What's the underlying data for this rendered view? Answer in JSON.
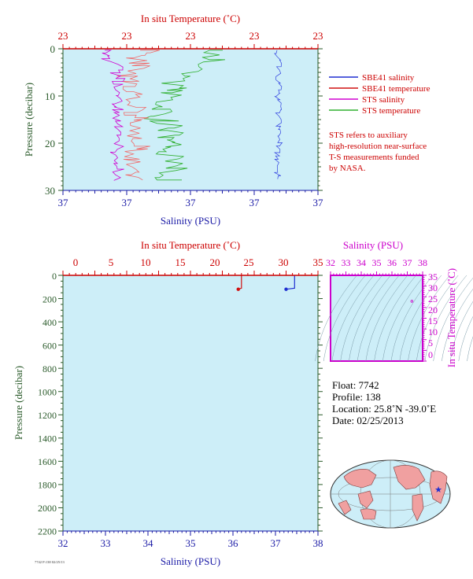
{
  "top_panel": {
    "top_axis_title": "In situ Temperature (˚C)",
    "top_ticks": [
      "23",
      "23",
      "23",
      "23",
      "23"
    ],
    "bottom_axis_title": "Salinity (PSU)",
    "bottom_ticks": [
      "37",
      "37",
      "37",
      "37",
      "37"
    ],
    "left_axis_title": "Pressure (decibar)",
    "left_ticks": [
      "0",
      "10",
      "20",
      "30"
    ]
  },
  "legend": {
    "items": [
      {
        "label": "SBE41 salinity",
        "color": "#1f2fd0"
      },
      {
        "label": "SBE41 temperature",
        "color": "#d01010"
      },
      {
        "label": "STS salinity",
        "color": "#d000d0"
      },
      {
        "label": "STS temperature",
        "color": "#30b030"
      }
    ],
    "note": [
      "STS refers to auxiliary",
      "high-resolution near-surface",
      "T-S measurements funded",
      "by NASA."
    ]
  },
  "bottom_panel": {
    "top_axis_title": "In situ Temperature (˚C)",
    "top_ticks": [
      "0",
      "5",
      "10",
      "15",
      "20",
      "25",
      "30",
      "35"
    ],
    "bottom_axis_title": "Salinity (PSU)",
    "bottom_ticks": [
      "32",
      "33",
      "34",
      "35",
      "36",
      "37",
      "38"
    ],
    "left_axis_title": "Pressure (decibar)",
    "left_ticks": [
      "0",
      "200",
      "400",
      "600",
      "800",
      "1000",
      "1200",
      "1400",
      "1600",
      "1800",
      "2000",
      "2200"
    ]
  },
  "ts_panel": {
    "top_axis_title": "Salinity (PSU)",
    "top_ticks": [
      "32",
      "33",
      "34",
      "35",
      "36",
      "37",
      "38"
    ],
    "right_axis_title": "In situ Temperature (˚C)",
    "right_ticks": [
      "0",
      "5",
      "10",
      "15",
      "20",
      "25",
      "30",
      "35"
    ]
  },
  "info": {
    "lines": [
      "Float:  7742",
      "Profile:  138",
      "Location:  25.8˚N  -39.0˚E",
      "Date:  02/25/2013"
    ]
  },
  "footnote": "7742 P:138 02/25/13",
  "chart_data": [
    {
      "type": "line",
      "panel": "near-surface profile",
      "series": [
        {
          "name": "SBE41 salinity",
          "values_y_decibar": [
            4,
            6,
            8,
            10,
            12,
            14,
            16,
            18,
            20,
            22,
            24,
            26,
            28
          ]
        },
        {
          "name": "SBE41 temperature",
          "values_y_decibar": [
            0
          ]
        },
        {
          "name": "STS salinity",
          "values_y_decibar": [
            0,
            1,
            2,
            3,
            5,
            8,
            12,
            16,
            20,
            24,
            27
          ]
        },
        {
          "name": "STS temperature",
          "values_y_decibar": [
            0,
            1,
            2,
            3,
            5,
            8,
            12,
            16,
            20,
            24,
            27
          ]
        }
      ],
      "ylim": [
        30,
        0
      ]
    },
    {
      "type": "line",
      "panel": "full-depth profile",
      "series": [
        {
          "name": "SBE41 temperature",
          "x": [
            22.5,
            23.0,
            23.0
          ],
          "y": [
            120,
            110,
            0
          ]
        },
        {
          "name": "SBE41 salinity",
          "x": [
            37.25,
            37.45,
            37.45
          ],
          "y": [
            120,
            110,
            0
          ]
        }
      ],
      "xlim_temperature": [
        -5,
        35
      ],
      "xlim_salinity": [
        32,
        38
      ],
      "ylim": [
        2200,
        0
      ]
    },
    {
      "type": "scatter",
      "panel": "T-S diagram",
      "series": [
        {
          "name": "T-S",
          "x": [
            37.3
          ],
          "y": [
            22.9
          ]
        }
      ],
      "xlim": [
        32,
        38
      ],
      "ylim": [
        -5,
        35
      ]
    }
  ],
  "colors": {
    "plot_bg": "#cdeef8",
    "axis_red": "#cc0000",
    "axis_blue": "#1a1aa6",
    "axis_green": "#2a5a2a",
    "axis_magenta": "#cc00cc"
  }
}
